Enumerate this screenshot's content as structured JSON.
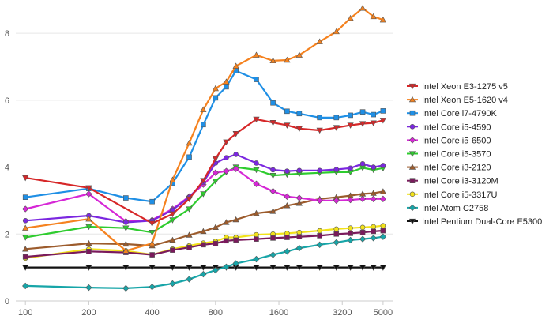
{
  "chart_data": {
    "type": "line",
    "title": "",
    "xlabel": "",
    "ylabel": "",
    "x_scale": "log",
    "xlim": [
      90,
      5600
    ],
    "ylim": [
      0,
      8.9
    ],
    "x_ticks": [
      100,
      200,
      400,
      800,
      1600,
      3200,
      5000
    ],
    "x_tick_labels": [
      "100",
      "200",
      "400",
      "800",
      "1600",
      "3200",
      "5000"
    ],
    "y_ticks": [
      0,
      2,
      4,
      6,
      8
    ],
    "y_tick_labels": [
      "0",
      "2",
      "4",
      "6",
      "8"
    ],
    "grid": "horizontal",
    "legend_position": "right",
    "x": [
      100,
      200,
      300,
      400,
      500,
      600,
      700,
      800,
      900,
      1000,
      1250,
      1500,
      1750,
      2000,
      2500,
      3000,
      3500,
      4000,
      4500,
      5000
    ],
    "series": [
      {
        "name": "Intel Xeon E3-1275 v5",
        "color": "#d62728",
        "marker": "triangle-down",
        "points": [
          [
            100,
            3.68
          ],
          [
            200,
            3.38
          ],
          [
            400,
            2.32
          ],
          [
            500,
            2.6
          ],
          [
            600,
            3.05
          ],
          [
            700,
            3.6
          ],
          [
            800,
            4.25
          ],
          [
            900,
            4.75
          ],
          [
            1000,
            5.0
          ],
          [
            1250,
            5.43
          ],
          [
            1500,
            5.33
          ],
          [
            1750,
            5.25
          ],
          [
            2000,
            5.15
          ],
          [
            2500,
            5.1
          ],
          [
            3000,
            5.18
          ],
          [
            3500,
            5.25
          ],
          [
            4000,
            5.3
          ],
          [
            4500,
            5.32
          ],
          [
            5000,
            5.4
          ]
        ]
      },
      {
        "name": "Intel Xeon E5-1620 v4",
        "color": "#f5821f",
        "marker": "triangle-up",
        "points": [
          [
            100,
            2.18
          ],
          [
            200,
            2.45
          ],
          [
            300,
            1.5
          ],
          [
            400,
            1.72
          ],
          [
            500,
            3.62
          ],
          [
            600,
            4.72
          ],
          [
            700,
            5.72
          ],
          [
            800,
            6.35
          ],
          [
            900,
            6.55
          ],
          [
            1000,
            7.02
          ],
          [
            1250,
            7.35
          ],
          [
            1500,
            7.18
          ],
          [
            1750,
            7.2
          ],
          [
            2000,
            7.35
          ],
          [
            2500,
            7.75
          ],
          [
            3000,
            8.05
          ],
          [
            3500,
            8.45
          ],
          [
            4000,
            8.75
          ],
          [
            4500,
            8.5
          ],
          [
            5000,
            8.4
          ]
        ]
      },
      {
        "name": "Intel Core i7-4790K",
        "color": "#1f8fe5",
        "marker": "square",
        "points": [
          [
            100,
            3.1
          ],
          [
            200,
            3.36
          ],
          [
            300,
            3.08
          ],
          [
            400,
            2.97
          ],
          [
            500,
            3.52
          ],
          [
            600,
            4.3
          ],
          [
            700,
            5.27
          ],
          [
            800,
            6.07
          ],
          [
            900,
            6.4
          ],
          [
            1000,
            6.88
          ],
          [
            1250,
            6.62
          ],
          [
            1500,
            5.92
          ],
          [
            1750,
            5.67
          ],
          [
            2000,
            5.6
          ],
          [
            2500,
            5.48
          ],
          [
            3000,
            5.48
          ],
          [
            3500,
            5.55
          ],
          [
            4000,
            5.65
          ],
          [
            4500,
            5.57
          ],
          [
            5000,
            5.68
          ]
        ]
      },
      {
        "name": "Intel Core i5-4590",
        "color": "#7b27e0",
        "marker": "circle",
        "points": [
          [
            100,
            2.4
          ],
          [
            200,
            2.55
          ],
          [
            300,
            2.35
          ],
          [
            400,
            2.4
          ],
          [
            500,
            2.72
          ],
          [
            600,
            3.1
          ],
          [
            700,
            3.55
          ],
          [
            800,
            4.12
          ],
          [
            900,
            4.28
          ],
          [
            1000,
            4.38
          ],
          [
            1250,
            4.12
          ],
          [
            1500,
            3.92
          ],
          [
            1750,
            3.88
          ],
          [
            2000,
            3.9
          ],
          [
            2500,
            3.9
          ],
          [
            3000,
            3.93
          ],
          [
            3500,
            3.97
          ],
          [
            4000,
            4.1
          ],
          [
            4500,
            4.0
          ],
          [
            5000,
            4.05
          ]
        ]
      },
      {
        "name": "Intel Core i5-6500",
        "color": "#d627d6",
        "marker": "diamond",
        "points": [
          [
            100,
            2.75
          ],
          [
            200,
            3.2
          ],
          [
            300,
            2.38
          ],
          [
            400,
            2.42
          ],
          [
            500,
            2.75
          ],
          [
            600,
            3.12
          ],
          [
            700,
            3.48
          ],
          [
            800,
            3.83
          ],
          [
            900,
            3.88
          ],
          [
            1000,
            3.95
          ],
          [
            1250,
            3.5
          ],
          [
            1500,
            3.28
          ],
          [
            1750,
            3.12
          ],
          [
            2000,
            3.08
          ],
          [
            2500,
            3.0
          ],
          [
            3000,
            3.0
          ],
          [
            3500,
            3.02
          ],
          [
            4000,
            3.05
          ],
          [
            4500,
            3.05
          ],
          [
            5000,
            3.05
          ]
        ]
      },
      {
        "name": "Intel Core i5-3570",
        "color": "#2ecc2e",
        "marker": "triangle-down",
        "points": [
          [
            100,
            1.9
          ],
          [
            200,
            2.22
          ],
          [
            300,
            2.18
          ],
          [
            400,
            2.05
          ],
          [
            500,
            2.42
          ],
          [
            600,
            2.75
          ],
          [
            700,
            3.2
          ],
          [
            800,
            3.58
          ],
          [
            900,
            3.85
          ],
          [
            1000,
            4.0
          ],
          [
            1250,
            3.92
          ],
          [
            1500,
            3.75
          ],
          [
            1750,
            3.78
          ],
          [
            2000,
            3.8
          ],
          [
            2500,
            3.83
          ],
          [
            3000,
            3.85
          ],
          [
            3500,
            3.85
          ],
          [
            4000,
            3.98
          ],
          [
            4500,
            3.92
          ],
          [
            5000,
            3.97
          ]
        ]
      },
      {
        "name": "Intel Core i3-2120",
        "color": "#9c5b2c",
        "marker": "triangle-up",
        "points": [
          [
            100,
            1.55
          ],
          [
            200,
            1.72
          ],
          [
            300,
            1.7
          ],
          [
            400,
            1.65
          ],
          [
            500,
            1.82
          ],
          [
            600,
            1.97
          ],
          [
            700,
            2.08
          ],
          [
            800,
            2.2
          ],
          [
            900,
            2.35
          ],
          [
            1000,
            2.43
          ],
          [
            1250,
            2.62
          ],
          [
            1500,
            2.68
          ],
          [
            1750,
            2.85
          ],
          [
            2000,
            2.92
          ],
          [
            2500,
            3.05
          ],
          [
            3000,
            3.1
          ],
          [
            3500,
            3.15
          ],
          [
            4000,
            3.2
          ],
          [
            4500,
            3.22
          ],
          [
            5000,
            3.27
          ]
        ]
      },
      {
        "name": "Intel Core i3-3120M",
        "color": "#7a1a5c",
        "marker": "square",
        "points": [
          [
            100,
            1.32
          ],
          [
            200,
            1.48
          ],
          [
            300,
            1.45
          ],
          [
            400,
            1.38
          ],
          [
            500,
            1.52
          ],
          [
            600,
            1.6
          ],
          [
            700,
            1.68
          ],
          [
            800,
            1.72
          ],
          [
            900,
            1.8
          ],
          [
            1000,
            1.82
          ],
          [
            1250,
            1.85
          ],
          [
            1500,
            1.88
          ],
          [
            1750,
            1.9
          ],
          [
            2000,
            1.92
          ],
          [
            2500,
            1.95
          ],
          [
            3000,
            2.0
          ],
          [
            3500,
            2.02
          ],
          [
            4000,
            2.05
          ],
          [
            4500,
            2.08
          ],
          [
            5000,
            2.1
          ]
        ]
      },
      {
        "name": "Intel Core i5-3317U",
        "color": "#f2e21a",
        "marker": "circle",
        "points": [
          [
            100,
            1.28
          ],
          [
            200,
            1.55
          ],
          [
            300,
            1.5
          ],
          [
            400,
            1.38
          ],
          [
            500,
            1.55
          ],
          [
            600,
            1.65
          ],
          [
            700,
            1.73
          ],
          [
            800,
            1.78
          ],
          [
            900,
            1.9
          ],
          [
            1000,
            1.9
          ],
          [
            1250,
            1.98
          ],
          [
            1500,
            2.0
          ],
          [
            1750,
            2.02
          ],
          [
            2000,
            2.05
          ],
          [
            2500,
            2.1
          ],
          [
            3000,
            2.15
          ],
          [
            3500,
            2.18
          ],
          [
            4000,
            2.2
          ],
          [
            4500,
            2.22
          ],
          [
            5000,
            2.25
          ]
        ]
      },
      {
        "name": "Intel Atom C2758",
        "color": "#17a5a8",
        "marker": "diamond",
        "points": [
          [
            100,
            0.45
          ],
          [
            200,
            0.4
          ],
          [
            300,
            0.38
          ],
          [
            400,
            0.42
          ],
          [
            500,
            0.52
          ],
          [
            600,
            0.65
          ],
          [
            700,
            0.8
          ],
          [
            800,
            0.92
          ],
          [
            900,
            1.02
          ],
          [
            1000,
            1.12
          ],
          [
            1250,
            1.25
          ],
          [
            1500,
            1.38
          ],
          [
            1750,
            1.48
          ],
          [
            2000,
            1.58
          ],
          [
            2500,
            1.68
          ],
          [
            3000,
            1.75
          ],
          [
            3500,
            1.82
          ],
          [
            4000,
            1.85
          ],
          [
            4500,
            1.88
          ],
          [
            5000,
            1.92
          ]
        ]
      },
      {
        "name": "Intel Pentium Dual-Core E5300",
        "color": "#111111",
        "marker": "triangle-down",
        "points": [
          [
            100,
            1.0
          ],
          [
            200,
            1.0
          ],
          [
            300,
            1.0
          ],
          [
            400,
            1.0
          ],
          [
            500,
            1.0
          ],
          [
            600,
            1.0
          ],
          [
            700,
            1.0
          ],
          [
            800,
            1.0
          ],
          [
            900,
            1.0
          ],
          [
            1000,
            1.0
          ],
          [
            1250,
            1.0
          ],
          [
            1500,
            1.0
          ],
          [
            1750,
            1.0
          ],
          [
            2000,
            1.0
          ],
          [
            2500,
            1.0
          ],
          [
            3000,
            1.0
          ],
          [
            3500,
            1.0
          ],
          [
            4000,
            1.0
          ],
          [
            4500,
            1.0
          ],
          [
            5000,
            1.0
          ]
        ]
      }
    ]
  }
}
